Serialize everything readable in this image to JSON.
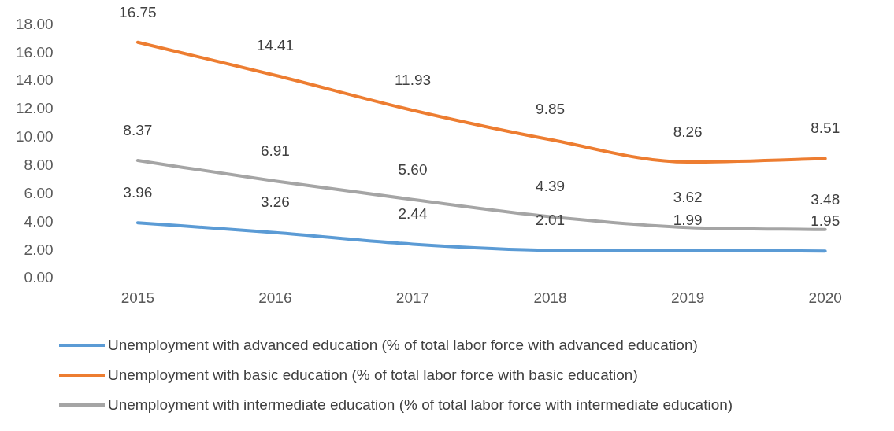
{
  "chart_data": {
    "type": "line",
    "categories": [
      "2015",
      "2016",
      "2017",
      "2018",
      "2019",
      "2020"
    ],
    "series": [
      {
        "name": "Unemployment with advanced education (% of total labor force with advanced education)",
        "color": "#5b9bd5",
        "values": [
          3.96,
          3.26,
          2.44,
          2.01,
          1.99,
          1.95
        ],
        "value_labels": [
          "3.96",
          "3.26",
          "2.44",
          "2.01",
          "1.99",
          "1.95"
        ]
      },
      {
        "name": "Unemployment with basic education (% of total labor force with basic education)",
        "color": "#ed7d31",
        "values": [
          16.75,
          14.41,
          11.93,
          9.85,
          8.26,
          8.51
        ],
        "value_labels": [
          "16.75",
          "14.41",
          "11.93",
          "9.85",
          "8.26",
          "8.51"
        ]
      },
      {
        "name": "Unemployment with intermediate education (% of total labor force with intermediate education)",
        "color": "#a5a5a5",
        "values": [
          8.37,
          6.91,
          5.6,
          4.39,
          3.62,
          3.48
        ],
        "value_labels": [
          "8.37",
          "6.91",
          "5.60",
          "4.39",
          "3.62",
          "3.48"
        ]
      }
    ],
    "ylim": [
      0,
      18
    ],
    "yticks": [
      {
        "value": 0,
        "label": "0.00"
      },
      {
        "value": 2,
        "label": "2.00"
      },
      {
        "value": 4,
        "label": "4.00"
      },
      {
        "value": 6,
        "label": "6.00"
      },
      {
        "value": 8,
        "label": "8.00"
      },
      {
        "value": 10,
        "label": "10.00"
      },
      {
        "value": 12,
        "label": "12.00"
      },
      {
        "value": 14,
        "label": "14.00"
      },
      {
        "value": 16,
        "label": "16.00"
      },
      {
        "value": 18,
        "label": "18.00"
      }
    ],
    "grid": false,
    "legend": "bottom",
    "marker": "none",
    "line_style": "solid"
  }
}
